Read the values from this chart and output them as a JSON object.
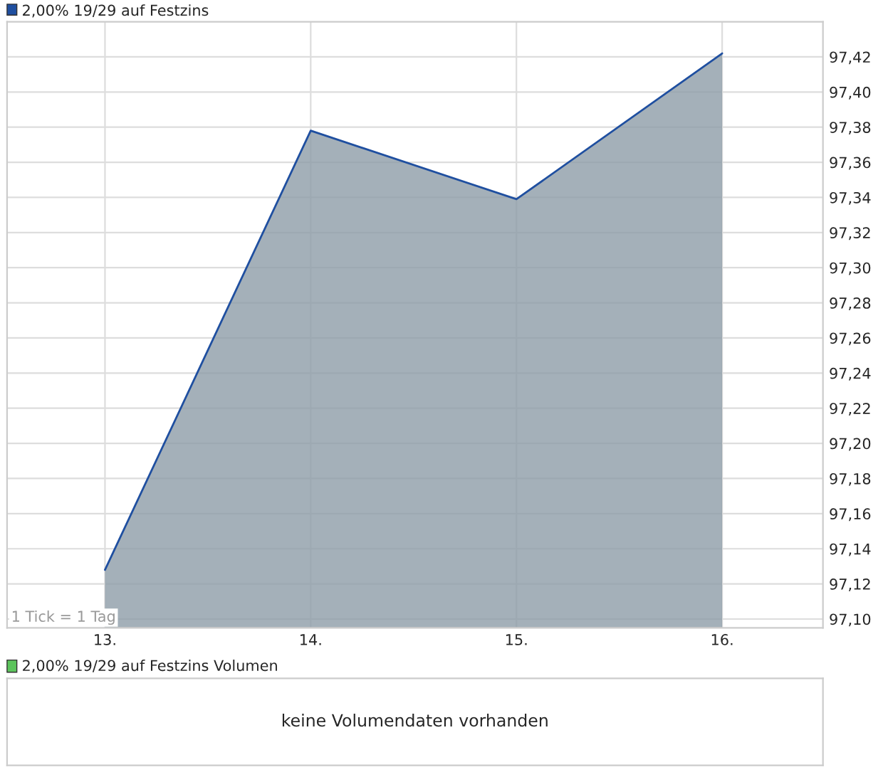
{
  "chart_data": [
    {
      "type": "area",
      "categories": [
        "13.",
        "14.",
        "15.",
        "16."
      ],
      "series": [
        {
          "name": "2,00% 19/29 auf Festzins",
          "color": "#1f4fa0",
          "values": [
            97.128,
            97.378,
            97.339,
            97.422
          ]
        }
      ],
      "ylim": [
        97.095,
        97.44
      ],
      "yticks": [
        {
          "value": 97.1,
          "label": "97,10"
        },
        {
          "value": 97.12,
          "label": "97,12"
        },
        {
          "value": 97.14,
          "label": "97,14"
        },
        {
          "value": 97.16,
          "label": "97,16"
        },
        {
          "value": 97.18,
          "label": "97,18"
        },
        {
          "value": 97.2,
          "label": "97,20"
        },
        {
          "value": 97.22,
          "label": "97,22"
        },
        {
          "value": 97.24,
          "label": "97,24"
        },
        {
          "value": 97.26,
          "label": "97,26"
        },
        {
          "value": 97.28,
          "label": "97,28"
        },
        {
          "value": 97.3,
          "label": "97,30"
        },
        {
          "value": 97.32,
          "label": "97,32"
        },
        {
          "value": 97.34,
          "label": "97,34"
        },
        {
          "value": 97.36,
          "label": "97,36"
        },
        {
          "value": 97.38,
          "label": "97,38"
        },
        {
          "value": 97.4,
          "label": "97,40"
        },
        {
          "value": 97.42,
          "label": "97,42"
        }
      ],
      "grid": true,
      "legend": "top left",
      "annotations": [
        "1 Tick = 1 Tag"
      ]
    },
    {
      "type": "other",
      "title": "2,00% 19/29 auf Festzins Volumen",
      "annotations": [
        "keine Volumendaten vorhanden"
      ]
    }
  ]
}
